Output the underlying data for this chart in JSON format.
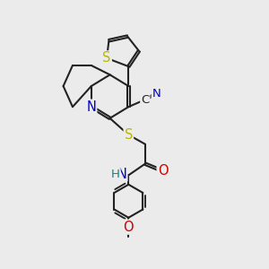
{
  "bg_color": "#ebebeb",
  "bond_color": "#222222",
  "bond_width": 1.5,
  "dbo": 0.055,
  "atom_colors": {
    "S": "#b8b800",
    "N": "#0000cc",
    "O": "#cc0000",
    "C": "#222222",
    "H": "#008888"
  },
  "fs": 9.5
}
